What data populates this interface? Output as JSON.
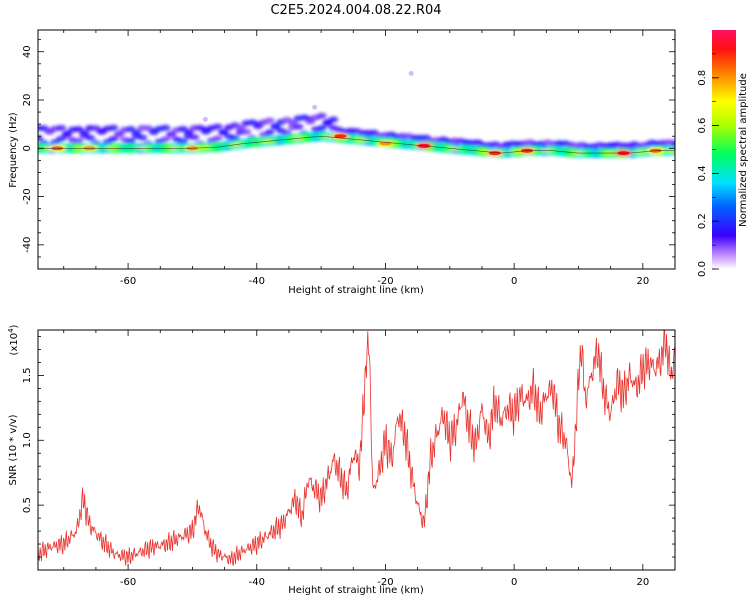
{
  "title": "C2E5.2024.004.08.22.R04",
  "chart_data": [
    {
      "type": "heatmap",
      "xlabel": "Height of straight line (km)",
      "ylabel": "Frequency (Hz)",
      "xlim": [
        -74,
        25
      ],
      "ylim": [
        -50,
        49
      ],
      "xticks": [
        -60,
        -40,
        -20,
        0,
        20
      ],
      "xtick_labels": [
        "-60",
        "-40",
        "-20",
        "0",
        "20"
      ],
      "yticks": [
        -40,
        -20,
        0,
        20,
        40
      ],
      "ytick_labels": [
        "-40",
        "-20",
        "0",
        "20",
        "40"
      ],
      "colorbar": {
        "label": "Normalized spectral amplitude",
        "range": [
          0.0,
          1.0
        ],
        "ticks": [
          0.0,
          0.2,
          0.4,
          0.6,
          0.8
        ],
        "tick_labels": [
          "0.0",
          "0.2",
          "0.4",
          "0.6",
          "0.8"
        ]
      },
      "ridge": {
        "x": [
          -74,
          -70,
          -66,
          -62,
          -58,
          -54,
          -50,
          -46,
          -42,
          -38,
          -34,
          -30,
          -26,
          -22,
          -18,
          -14,
          -10,
          -6,
          -2,
          2,
          6,
          10,
          14,
          18,
          22,
          24
        ],
        "freq": [
          0,
          0,
          0,
          0,
          0,
          0,
          0,
          0.5,
          2,
          3,
          4,
          5,
          4,
          3,
          2,
          1,
          0,
          -1,
          -2,
          -1,
          -1,
          -2,
          -2,
          -2,
          -1,
          -1
        ]
      },
      "hotspots": [
        {
          "x": -71,
          "freq": 0,
          "amp": 0.85
        },
        {
          "x": -66,
          "freq": 0,
          "amp": 0.8
        },
        {
          "x": -50,
          "freq": 0,
          "amp": 0.8
        },
        {
          "x": -27,
          "freq": 5,
          "amp": 0.9
        },
        {
          "x": -20,
          "freq": 2,
          "amp": 0.8
        },
        {
          "x": -14,
          "freq": 1,
          "amp": 0.95
        },
        {
          "x": -3,
          "freq": -2,
          "amp": 0.9
        },
        {
          "x": 2,
          "freq": -1,
          "amp": 0.9
        },
        {
          "x": 17,
          "freq": -2,
          "amp": 0.95
        },
        {
          "x": 22,
          "freq": -1,
          "amp": 0.85
        }
      ],
      "scatter_points": [
        {
          "x": -16,
          "freq": 31
        },
        {
          "x": -31,
          "freq": 17
        },
        {
          "x": -48,
          "freq": 12
        }
      ]
    },
    {
      "type": "line",
      "xlabel": "Height of straight line (km)",
      "ylabel": "SNR (10 * v/v)",
      "y_multiplier": "(x10",
      "y_multiplier_exp": "4",
      "y_multiplier_close": ")",
      "xlim": [
        -74,
        25
      ],
      "ylim": [
        0,
        1.85
      ],
      "xticks": [
        -60,
        -40,
        -20,
        0,
        20
      ],
      "xtick_labels": [
        "-60",
        "-40",
        "-20",
        "0",
        "20"
      ],
      "yticks": [
        0.5,
        1.0,
        1.5
      ],
      "ytick_labels": [
        "0.5",
        "1.0",
        "1.5"
      ],
      "color": "#e8302a",
      "series": [
        {
          "name": "SNR",
          "x": [
            -74,
            -72,
            -70,
            -68,
            -67,
            -66,
            -64,
            -62,
            -60,
            -58,
            -56,
            -54,
            -52,
            -50,
            -49,
            -48,
            -47,
            -46,
            -44,
            -42,
            -40,
            -38,
            -36,
            -34,
            -33,
            -32,
            -30,
            -28,
            -26,
            -25,
            -24,
            -23,
            -22.5,
            -22,
            -21,
            -20,
            -19,
            -18,
            -17,
            -16,
            -15,
            -14,
            -13,
            -12,
            -11,
            -10,
            -9,
            -8,
            -7,
            -6,
            -5,
            -4,
            -3,
            -2,
            -1,
            0,
            1,
            2,
            3,
            4,
            5,
            6,
            7,
            8,
            9,
            10,
            10.5,
            11,
            12,
            13,
            14,
            15,
            16,
            17,
            18,
            19,
            20,
            21,
            22,
            23,
            23.5,
            24,
            24.5,
            25
          ],
          "y": [
            0.12,
            0.18,
            0.2,
            0.3,
            0.55,
            0.35,
            0.22,
            0.12,
            0.1,
            0.14,
            0.18,
            0.2,
            0.25,
            0.3,
            0.5,
            0.3,
            0.18,
            0.12,
            0.08,
            0.15,
            0.2,
            0.28,
            0.35,
            0.55,
            0.4,
            0.7,
            0.55,
            0.85,
            0.6,
            0.9,
            0.8,
            1.6,
            1.75,
            0.6,
            0.75,
            1.0,
            0.85,
            1.2,
            1.05,
            0.75,
            0.5,
            0.35,
            0.85,
            1.05,
            1.2,
            1.0,
            1.1,
            1.35,
            1.1,
            0.95,
            1.25,
            1.0,
            1.3,
            1.15,
            1.25,
            1.2,
            1.35,
            1.3,
            1.4,
            1.2,
            1.35,
            1.4,
            1.1,
            1.0,
            0.65,
            1.45,
            1.75,
            1.3,
            1.5,
            1.7,
            1.35,
            1.2,
            1.45,
            1.35,
            1.5,
            1.4,
            1.55,
            1.6,
            1.55,
            1.65,
            1.8,
            1.6,
            1.5,
            1.7
          ]
        }
      ]
    }
  ]
}
